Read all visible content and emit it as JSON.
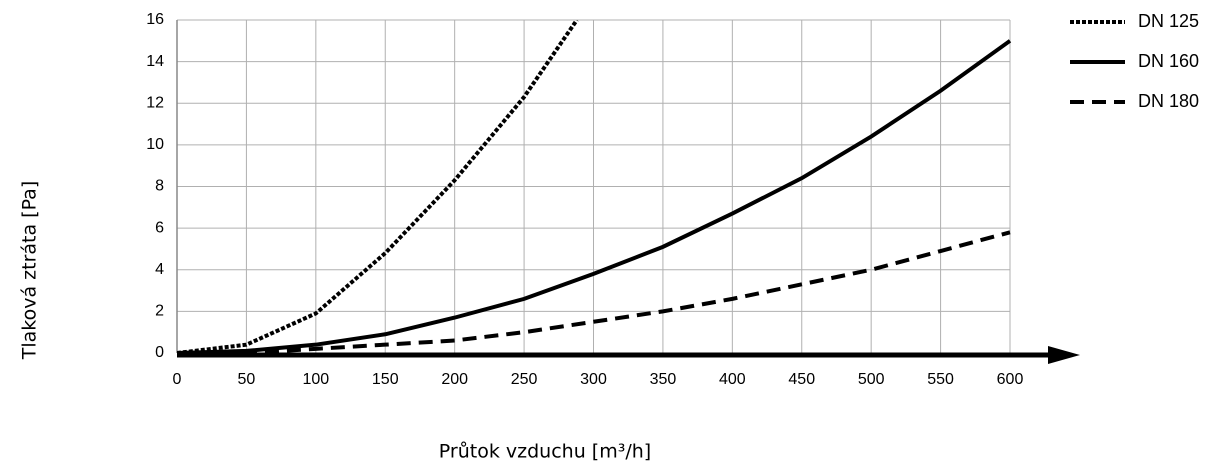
{
  "chart_data": {
    "type": "line",
    "xlabel": "Průtok vzduchu [m³/h]",
    "ylabel": "Tlaková ztráta [Pa]",
    "xlim": [
      0,
      600
    ],
    "xticks": [
      0,
      50,
      100,
      150,
      200,
      250,
      300,
      350,
      400,
      450,
      500,
      550,
      600
    ],
    "ylim": [
      0,
      16
    ],
    "yticks": [
      0,
      2,
      4,
      6,
      8,
      10,
      12,
      14,
      16
    ],
    "grid": true,
    "legend": "top-right",
    "series": [
      {
        "name": "DN 125",
        "color": "#000000",
        "dash": "dotted",
        "x": [
          0,
          50,
          100,
          150,
          200,
          250,
          288
        ],
        "values": [
          0,
          0.4,
          1.9,
          4.8,
          8.3,
          12.3,
          16
        ]
      },
      {
        "name": "DN 160",
        "color": "#000000",
        "dash": "solid",
        "x": [
          0,
          50,
          100,
          150,
          200,
          250,
          300,
          350,
          400,
          450,
          500,
          550,
          600
        ],
        "values": [
          0,
          0.1,
          0.4,
          0.9,
          1.7,
          2.6,
          3.8,
          5.1,
          6.7,
          8.4,
          10.4,
          12.6,
          15
        ]
      },
      {
        "name": "DN 180",
        "color": "#000000",
        "dash": "dashed",
        "x": [
          0,
          50,
          100,
          150,
          200,
          250,
          300,
          350,
          400,
          450,
          500,
          550,
          600
        ],
        "values": [
          0,
          0,
          0.2,
          0.4,
          0.6,
          1.0,
          1.5,
          2.0,
          2.6,
          3.3,
          4.0,
          4.9,
          5.8
        ]
      }
    ]
  }
}
